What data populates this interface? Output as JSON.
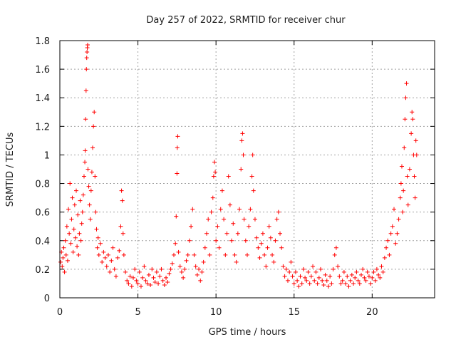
{
  "chart_data": {
    "type": "scatter",
    "title": "Day 257 of 2022, SRMTID for receiver chur",
    "xlabel": "GPS time / hours",
    "ylabel": "SRMTID / TECUs",
    "xlim": [
      0,
      24
    ],
    "ylim": [
      0,
      1.8
    ],
    "xticks": [
      0,
      5,
      10,
      15,
      20
    ],
    "xtick_labels": [
      "0",
      "5",
      "10",
      "15",
      "20"
    ],
    "yticks": [
      0,
      0.2,
      0.4,
      0.6,
      0.8,
      1.0,
      1.2,
      1.4,
      1.6,
      1.8
    ],
    "ytick_labels": [
      "0",
      "0.2",
      "0.4",
      "0.6",
      "0.8",
      "1",
      "1.2",
      "1.4",
      "1.6",
      "1.8"
    ],
    "grid": true,
    "marker": "+",
    "color": "#ff0000",
    "series": [
      {
        "name": "SRMTID",
        "points": [
          [
            0.05,
            0.25
          ],
          [
            0.1,
            0.32
          ],
          [
            0.15,
            0.22
          ],
          [
            0.2,
            0.28
          ],
          [
            0.25,
            0.35
          ],
          [
            0.3,
            0.18
          ],
          [
            0.35,
            0.4
          ],
          [
            0.4,
            0.3
          ],
          [
            0.45,
            0.5
          ],
          [
            0.5,
            0.26
          ],
          [
            0.55,
            0.62
          ],
          [
            0.6,
            0.45
          ],
          [
            0.65,
            0.8
          ],
          [
            0.7,
            0.38
          ],
          [
            0.75,
            0.55
          ],
          [
            0.8,
            0.7
          ],
          [
            0.85,
            0.32
          ],
          [
            0.9,
            0.48
          ],
          [
            0.95,
            0.65
          ],
          [
            1.0,
            0.42
          ],
          [
            1.05,
            0.75
          ],
          [
            1.1,
            0.36
          ],
          [
            1.15,
            0.58
          ],
          [
            1.2,
            0.3
          ],
          [
            1.25,
            0.45
          ],
          [
            1.3,
            0.68
          ],
          [
            1.35,
            0.4
          ],
          [
            1.4,
            0.52
          ],
          [
            1.45,
            0.6
          ],
          [
            1.5,
            0.72
          ],
          [
            1.55,
            0.85
          ],
          [
            1.6,
            0.95
          ],
          [
            1.62,
            1.03
          ],
          [
            1.65,
            1.25
          ],
          [
            1.68,
            1.45
          ],
          [
            1.7,
            1.6
          ],
          [
            1.72,
            1.68
          ],
          [
            1.74,
            1.72
          ],
          [
            1.76,
            1.75
          ],
          [
            1.78,
            1.77
          ],
          [
            1.8,
            0.9
          ],
          [
            1.85,
            0.78
          ],
          [
            1.9,
            0.65
          ],
          [
            1.95,
            0.55
          ],
          [
            2.0,
            0.75
          ],
          [
            2.05,
            0.88
          ],
          [
            2.1,
            1.05
          ],
          [
            2.15,
            1.2
          ],
          [
            2.2,
            1.3
          ],
          [
            2.25,
            0.85
          ],
          [
            2.3,
            0.6
          ],
          [
            2.35,
            0.48
          ],
          [
            2.4,
            0.35
          ],
          [
            2.45,
            0.42
          ],
          [
            2.5,
            0.3
          ],
          [
            2.6,
            0.38
          ],
          [
            2.7,
            0.25
          ],
          [
            2.8,
            0.32
          ],
          [
            2.9,
            0.28
          ],
          [
            3.0,
            0.22
          ],
          [
            3.1,
            0.3
          ],
          [
            3.2,
            0.18
          ],
          [
            3.3,
            0.26
          ],
          [
            3.4,
            0.35
          ],
          [
            3.5,
            0.2
          ],
          [
            3.6,
            0.15
          ],
          [
            3.7,
            0.28
          ],
          [
            3.8,
            0.33
          ],
          [
            3.9,
            0.5
          ],
          [
            3.95,
            0.75
          ],
          [
            4.0,
            0.68
          ],
          [
            4.05,
            0.45
          ],
          [
            4.1,
            0.3
          ],
          [
            4.2,
            0.18
          ],
          [
            4.3,
            0.12
          ],
          [
            4.4,
            0.1
          ],
          [
            4.5,
            0.15
          ],
          [
            4.6,
            0.08
          ],
          [
            4.7,
            0.14
          ],
          [
            4.8,
            0.2
          ],
          [
            4.9,
            0.12
          ],
          [
            5.0,
            0.1
          ],
          [
            5.1,
            0.18
          ],
          [
            5.2,
            0.08
          ],
          [
            5.3,
            0.14
          ],
          [
            5.4,
            0.22
          ],
          [
            5.5,
            0.12
          ],
          [
            5.6,
            0.1
          ],
          [
            5.7,
            0.16
          ],
          [
            5.8,
            0.09
          ],
          [
            5.9,
            0.2
          ],
          [
            6.0,
            0.14
          ],
          [
            6.1,
            0.11
          ],
          [
            6.2,
            0.18
          ],
          [
            6.3,
            0.1
          ],
          [
            6.4,
            0.15
          ],
          [
            6.5,
            0.2
          ],
          [
            6.6,
            0.12
          ],
          [
            6.7,
            0.09
          ],
          [
            6.8,
            0.14
          ],
          [
            6.9,
            0.11
          ],
          [
            7.0,
            0.17
          ],
          [
            7.1,
            0.2
          ],
          [
            7.2,
            0.24
          ],
          [
            7.3,
            0.3
          ],
          [
            7.4,
            0.38
          ],
          [
            7.45,
            0.57
          ],
          [
            7.5,
            0.87
          ],
          [
            7.52,
            1.05
          ],
          [
            7.55,
            1.13
          ],
          [
            7.6,
            0.32
          ],
          [
            7.7,
            0.22
          ],
          [
            7.8,
            0.18
          ],
          [
            7.9,
            0.14
          ],
          [
            8.0,
            0.2
          ],
          [
            8.1,
            0.26
          ],
          [
            8.2,
            0.3
          ],
          [
            8.3,
            0.4
          ],
          [
            8.4,
            0.5
          ],
          [
            8.5,
            0.62
          ],
          [
            8.6,
            0.3
          ],
          [
            8.7,
            0.22
          ],
          [
            8.8,
            0.16
          ],
          [
            8.9,
            0.2
          ],
          [
            9.0,
            0.12
          ],
          [
            9.1,
            0.18
          ],
          [
            9.2,
            0.25
          ],
          [
            9.3,
            0.35
          ],
          [
            9.4,
            0.45
          ],
          [
            9.5,
            0.55
          ],
          [
            9.6,
            0.3
          ],
          [
            9.7,
            0.6
          ],
          [
            9.8,
            0.7
          ],
          [
            9.85,
            0.85
          ],
          [
            9.9,
            0.95
          ],
          [
            9.95,
            0.88
          ],
          [
            10.0,
            0.4
          ],
          [
            10.1,
            0.5
          ],
          [
            10.2,
            0.35
          ],
          [
            10.3,
            0.62
          ],
          [
            10.4,
            0.75
          ],
          [
            10.5,
            0.55
          ],
          [
            10.6,
            0.3
          ],
          [
            10.7,
            0.45
          ],
          [
            10.8,
            0.85
          ],
          [
            10.9,
            0.65
          ],
          [
            11.0,
            0.4
          ],
          [
            11.1,
            0.52
          ],
          [
            11.2,
            0.3
          ],
          [
            11.3,
            0.25
          ],
          [
            11.4,
            0.45
          ],
          [
            11.5,
            0.62
          ],
          [
            11.6,
            0.9
          ],
          [
            11.65,
            1.1
          ],
          [
            11.7,
            1.15
          ],
          [
            11.75,
            1.0
          ],
          [
            11.8,
            0.55
          ],
          [
            11.9,
            0.4
          ],
          [
            12.0,
            0.3
          ],
          [
            12.1,
            0.5
          ],
          [
            12.2,
            0.62
          ],
          [
            12.3,
            0.85
          ],
          [
            12.35,
            1.0
          ],
          [
            12.4,
            0.75
          ],
          [
            12.5,
            0.55
          ],
          [
            12.6,
            0.42
          ],
          [
            12.7,
            0.35
          ],
          [
            12.8,
            0.28
          ],
          [
            12.9,
            0.38
          ],
          [
            13.0,
            0.45
          ],
          [
            13.1,
            0.3
          ],
          [
            13.2,
            0.22
          ],
          [
            13.3,
            0.35
          ],
          [
            13.4,
            0.5
          ],
          [
            13.5,
            0.42
          ],
          [
            13.6,
            0.3
          ],
          [
            13.7,
            0.25
          ],
          [
            13.8,
            0.4
          ],
          [
            13.9,
            0.55
          ],
          [
            14.0,
            0.6
          ],
          [
            14.1,
            0.45
          ],
          [
            14.2,
            0.35
          ],
          [
            14.3,
            0.22
          ],
          [
            14.4,
            0.15
          ],
          [
            14.5,
            0.2
          ],
          [
            14.6,
            0.12
          ],
          [
            14.7,
            0.18
          ],
          [
            14.8,
            0.25
          ],
          [
            14.9,
            0.15
          ],
          [
            15.0,
            0.1
          ],
          [
            15.1,
            0.18
          ],
          [
            15.2,
            0.12
          ],
          [
            15.3,
            0.08
          ],
          [
            15.4,
            0.15
          ],
          [
            15.5,
            0.1
          ],
          [
            15.6,
            0.2
          ],
          [
            15.7,
            0.14
          ],
          [
            15.8,
            0.12
          ],
          [
            15.9,
            0.18
          ],
          [
            16.0,
            0.1
          ],
          [
            16.1,
            0.15
          ],
          [
            16.2,
            0.22
          ],
          [
            16.3,
            0.12
          ],
          [
            16.4,
            0.18
          ],
          [
            16.5,
            0.1
          ],
          [
            16.6,
            0.14
          ],
          [
            16.7,
            0.2
          ],
          [
            16.8,
            0.12
          ],
          [
            16.9,
            0.09
          ],
          [
            17.0,
            0.16
          ],
          [
            17.1,
            0.12
          ],
          [
            17.2,
            0.08
          ],
          [
            17.3,
            0.15
          ],
          [
            17.4,
            0.1
          ],
          [
            17.5,
            0.2
          ],
          [
            17.6,
            0.3
          ],
          [
            17.7,
            0.35
          ],
          [
            17.8,
            0.22
          ],
          [
            17.9,
            0.15
          ],
          [
            18.0,
            0.1
          ],
          [
            18.1,
            0.12
          ],
          [
            18.2,
            0.18
          ],
          [
            18.3,
            0.1
          ],
          [
            18.4,
            0.15
          ],
          [
            18.5,
            0.08
          ],
          [
            18.6,
            0.12
          ],
          [
            18.7,
            0.16
          ],
          [
            18.8,
            0.1
          ],
          [
            18.9,
            0.14
          ],
          [
            19.0,
            0.18
          ],
          [
            19.1,
            0.12
          ],
          [
            19.2,
            0.1
          ],
          [
            19.3,
            0.16
          ],
          [
            19.4,
            0.2
          ],
          [
            19.5,
            0.14
          ],
          [
            19.6,
            0.12
          ],
          [
            19.7,
            0.18
          ],
          [
            19.8,
            0.15
          ],
          [
            19.9,
            0.1
          ],
          [
            20.0,
            0.14
          ],
          [
            20.1,
            0.18
          ],
          [
            20.2,
            0.12
          ],
          [
            20.3,
            0.2
          ],
          [
            20.4,
            0.16
          ],
          [
            20.5,
            0.14
          ],
          [
            20.6,
            0.22
          ],
          [
            20.7,
            0.18
          ],
          [
            20.8,
            0.28
          ],
          [
            20.9,
            0.35
          ],
          [
            21.0,
            0.4
          ],
          [
            21.1,
            0.3
          ],
          [
            21.2,
            0.45
          ],
          [
            21.3,
            0.5
          ],
          [
            21.4,
            0.62
          ],
          [
            21.5,
            0.38
          ],
          [
            21.6,
            0.45
          ],
          [
            21.7,
            0.55
          ],
          [
            21.8,
            0.7
          ],
          [
            21.85,
            0.8
          ],
          [
            21.9,
            0.92
          ],
          [
            21.95,
            0.6
          ],
          [
            22.0,
            0.75
          ],
          [
            22.05,
            1.05
          ],
          [
            22.1,
            1.25
          ],
          [
            22.15,
            1.4
          ],
          [
            22.2,
            1.5
          ],
          [
            22.25,
            0.85
          ],
          [
            22.3,
            0.65
          ],
          [
            22.4,
            0.9
          ],
          [
            22.5,
            1.15
          ],
          [
            22.55,
            1.3
          ],
          [
            22.6,
            1.25
          ],
          [
            22.65,
            1.0
          ],
          [
            22.7,
            0.85
          ],
          [
            22.75,
            0.7
          ],
          [
            22.8,
            1.1
          ],
          [
            22.85,
            1.0
          ]
        ]
      }
    ]
  }
}
